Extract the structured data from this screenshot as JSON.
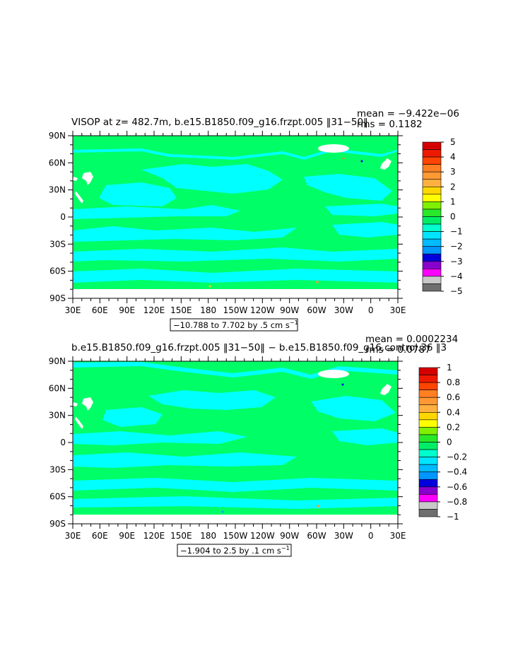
{
  "panels": [
    {
      "title": "VISOP at z= 482.7m, b.e15.B1850.f09_g16.frzpt.005 ‖31−50‖",
      "stats": {
        "mean": "mean = −9.422e−06",
        "rms": "rms = 0.1182"
      },
      "range_note": "−10.788 to 7.702 by .5 cm s",
      "range_unit_exp": "−1",
      "colorbar": {
        "labels": [
          "5",
          "4",
          "3",
          "2",
          "1",
          "0",
          "−1",
          "−2",
          "−3",
          "−4",
          "−5"
        ],
        "colors": [
          "#d40000",
          "#ee1a00",
          "#ff4400",
          "#ff7f22",
          "#ff9933",
          "#ffb040",
          "#ffd700",
          "#ffff00",
          "#7ff000",
          "#28e828",
          "#00ee66",
          "#00ffcc",
          "#00e5ff",
          "#00bbff",
          "#0096ff",
          "#0000dd",
          "#8800cc",
          "#ff00ff",
          "#c8c8c8",
          "#6e6e6e"
        ]
      }
    },
    {
      "title": "b.e15.B1850.f09_g16.frzpt.005 ‖31−50‖ − b.e15.B1850.f09_g16.control.36 ‖3",
      "stats": {
        "mean": "mean = 0.0002234",
        "rms": "rms = 0.0787"
      },
      "range_note": "−1.904 to 2.5 by .1 cm s",
      "range_unit_exp": "−1",
      "colorbar": {
        "labels": [
          "1",
          "0.8",
          "0.6",
          "0.4",
          "0.2",
          "0",
          "−0.2",
          "−0.4",
          "−0.6",
          "−0.8",
          "−1"
        ],
        "colors": [
          "#d40000",
          "#ee1a00",
          "#ff4400",
          "#ff7f22",
          "#ff9933",
          "#ffb040",
          "#ffd700",
          "#ffff00",
          "#7ff000",
          "#28e828",
          "#00ee66",
          "#00ffcc",
          "#00e5ff",
          "#00bbff",
          "#0096ff",
          "#0000dd",
          "#8800cc",
          "#ff00ff",
          "#c8c8c8",
          "#6e6e6e"
        ]
      }
    }
  ],
  "axes": {
    "lat_labels": [
      "90N",
      "60N",
      "30N",
      "0",
      "30S",
      "60S",
      "90S"
    ],
    "lon_labels": [
      "30E",
      "60E",
      "90E",
      "120E",
      "150E",
      "180",
      "150W",
      "120W",
      "90W",
      "60W",
      "30W",
      "0",
      "30E"
    ]
  },
  "colors": {
    "ocean": "#00ff66",
    "negative": "#00ffff",
    "land": "#ffffff"
  }
}
